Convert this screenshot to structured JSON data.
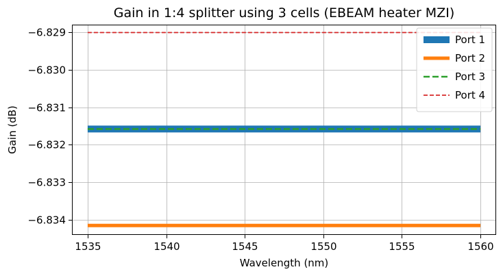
{
  "chart_data": {
    "type": "line",
    "title": "Gain in 1:4 splitter using 3 cells (EBEAM heater MZI)",
    "xlabel": "Wavelength (nm)",
    "ylabel": "Gain (dB)",
    "xlim": [
      1534,
      1561
    ],
    "ylim": [
      -6.8344,
      -6.8288
    ],
    "xticks": [
      1535,
      1540,
      1545,
      1550,
      1555,
      1560
    ],
    "xtick_labels": [
      "1535",
      "1540",
      "1545",
      "1550",
      "1555",
      "1560"
    ],
    "yticks": [
      -6.834,
      -6.833,
      -6.832,
      -6.831,
      -6.83,
      -6.829
    ],
    "ytick_labels": [
      "−6.834",
      "−6.833",
      "−6.832",
      "−6.831",
      "−6.830",
      "−6.829"
    ],
    "grid": true,
    "legend_position": "top-right",
    "x": [
      1535,
      1560
    ],
    "series": [
      {
        "name": "Port 1",
        "values": [
          -6.83158,
          -6.83158
        ],
        "color": "#1f77b4",
        "style": "solid",
        "weight": "thickest"
      },
      {
        "name": "Port 2",
        "values": [
          -6.83415,
          -6.83415
        ],
        "color": "#ff7f0e",
        "style": "solid",
        "weight": "thick"
      },
      {
        "name": "Port 3",
        "values": [
          -6.83158,
          -6.83158
        ],
        "color": "#2ca02c",
        "style": "dashed",
        "weight": "medium"
      },
      {
        "name": "Port 4",
        "values": [
          -6.82901,
          -6.82901
        ],
        "color": "#d62728",
        "style": "dashed",
        "weight": "thin"
      }
    ]
  }
}
